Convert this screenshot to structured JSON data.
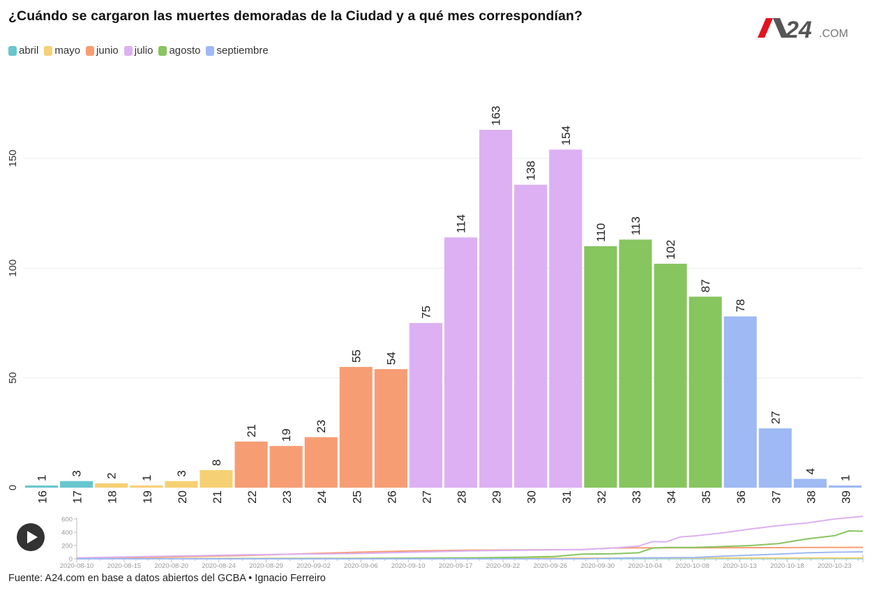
{
  "title": "¿Cuándo se cargaron las muertes demoradas de la Ciudad y a qué mes correspondían?",
  "logo": {
    "brand_a": "A",
    "brand_24": "24",
    "suffix": ".COM",
    "colors": {
      "accent": "#e3141f",
      "dark": "#555555",
      "gray": "#777777"
    }
  },
  "legend": [
    {
      "label": "abril",
      "color": "#67c6ce"
    },
    {
      "label": "mayo",
      "color": "#f6d074"
    },
    {
      "label": "junio",
      "color": "#f79d74"
    },
    {
      "label": "julio",
      "color": "#dcb0f2"
    },
    {
      "label": "agosto",
      "color": "#87c55f"
    },
    {
      "label": "septiembre",
      "color": "#9eb9f3"
    }
  ],
  "chart_data": [
    {
      "type": "bar",
      "title": "¿Cuándo se cargaron las muertes demoradas de la Ciudad y a qué mes correspondían?",
      "xlabel": "",
      "ylabel": "",
      "ylim": [
        0,
        165
      ],
      "yticks": [
        0,
        50,
        100,
        150
      ],
      "grid": true,
      "legend_position": "top-left",
      "categories": [
        "16",
        "17",
        "18",
        "19",
        "20",
        "21",
        "22",
        "23",
        "24",
        "25",
        "26",
        "27",
        "28",
        "29",
        "30",
        "31",
        "32",
        "33",
        "34",
        "35",
        "36",
        "37",
        "38",
        "39"
      ],
      "values": [
        1,
        3,
        2,
        1,
        3,
        8,
        21,
        19,
        23,
        55,
        54,
        75,
        114,
        163,
        138,
        154,
        110,
        113,
        102,
        87,
        78,
        27,
        4,
        1
      ],
      "series_by_bar": [
        "abril",
        "abril",
        "mayo",
        "mayo",
        "mayo",
        "mayo",
        "junio",
        "junio",
        "junio",
        "junio",
        "junio",
        "julio",
        "julio",
        "julio",
        "julio",
        "julio",
        "agosto",
        "agosto",
        "agosto",
        "agosto",
        "septiembre",
        "septiembre",
        "septiembre",
        "septiembre"
      ],
      "data_labels": true
    },
    {
      "type": "line",
      "title": "",
      "ylim": [
        0,
        650
      ],
      "yticks": [
        0,
        200,
        400,
        600
      ],
      "xticks": [
        "2020-08-10",
        "2020-08-15",
        "2020-08-20",
        "2020-08-24",
        "2020-08-29",
        "2020-09-02",
        "2020-09-06",
        "2020-09-10",
        "2020-09-17",
        "2020-09-22",
        "2020-09-26",
        "2020-09-30",
        "2020-10-04",
        "2020-10-08",
        "2020-10-13",
        "2020-10-18",
        "2020-10-23"
      ],
      "x_index_range": [
        0,
        28
      ],
      "series": [
        {
          "name": "abril",
          "color": "#67c6ce",
          "x": [
            0,
            28
          ],
          "values": [
            3,
            4
          ]
        },
        {
          "name": "mayo",
          "color": "#f6d074",
          "x": [
            0,
            10,
            20,
            28
          ],
          "values": [
            4,
            8,
            12,
            14
          ]
        },
        {
          "name": "junio",
          "color": "#f79d74",
          "x": [
            0,
            2,
            4,
            6,
            8,
            10,
            12,
            14,
            16,
            18,
            19,
            20,
            22,
            24,
            26,
            28
          ],
          "values": [
            10,
            20,
            35,
            50,
            75,
            100,
            120,
            130,
            135,
            140,
            162,
            165,
            165,
            168,
            170,
            172
          ]
        },
        {
          "name": "julio",
          "color": "#dcb0f2",
          "x": [
            0,
            2,
            4,
            6,
            8,
            10,
            12,
            14,
            16,
            18,
            19,
            20,
            20.5,
            21,
            21.5,
            22,
            23,
            24,
            25,
            26,
            27,
            28
          ],
          "values": [
            15,
            30,
            45,
            60,
            70,
            80,
            100,
            120,
            130,
            140,
            160,
            190,
            260,
            255,
            330,
            345,
            390,
            450,
            500,
            540,
            600,
            640
          ]
        },
        {
          "name": "agosto",
          "color": "#87c55f",
          "x": [
            0,
            10,
            12,
            14,
            16,
            17,
            18,
            19,
            20,
            20.5,
            21,
            22,
            23,
            24,
            25,
            26,
            27,
            27.5,
            28
          ],
          "values": [
            0,
            5,
            10,
            15,
            25,
            35,
            70,
            75,
            90,
            160,
            170,
            170,
            185,
            200,
            230,
            300,
            350,
            420,
            415
          ]
        },
        {
          "name": "septiembre",
          "color": "#9eb9f3",
          "x": [
            0,
            18,
            20,
            22,
            23,
            24,
            25,
            26,
            27,
            28
          ],
          "values": [
            0,
            0,
            15,
            20,
            40,
            55,
            70,
            90,
            100,
            105
          ]
        }
      ]
    }
  ],
  "controls": {
    "play_label": "play"
  },
  "source": "Fuente: A24.com en base a datos abiertos del GCBA • Ignacio Ferreiro"
}
